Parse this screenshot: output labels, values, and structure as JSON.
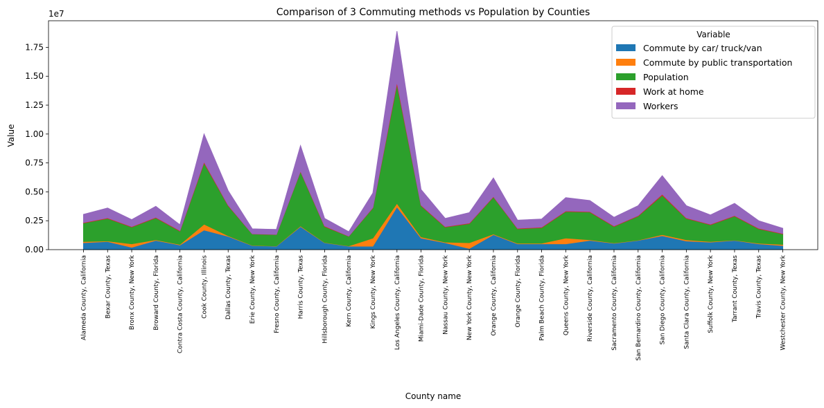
{
  "chart_data": {
    "type": "stacked_area",
    "title": "Comparison of 3 Commuting methods vs Population by Counties",
    "x_label": "County name",
    "y_label": "Value",
    "y_offset_label": "1e7",
    "legend_title": "Variable",
    "legend_position": "upper right",
    "grid": false,
    "categories": [
      "Alameda County, California",
      "Bexar County, Texas",
      "Bronx County, New York",
      "Broward County, Florida",
      "Contra Costa County, California",
      "Cook County, Illinois",
      "Dallas County, Texas",
      "Erie County, New York",
      "Fresno County, California",
      "Harris County, Texas",
      "Hillsborough County, Florida",
      "Kern County, California",
      "Kings County, New York",
      "Los Angeles County, California",
      "Miami-Dade County, Florida",
      "Nassau County, New York",
      "New York County, New York",
      "Orange County, California",
      "Orange County, Florida",
      "Palm Beach County, Florida",
      "Queens County, New York",
      "Riverside County, California",
      "Sacramento County, California",
      "San Bernardino County, California",
      "San Diego County, California",
      "Santa Clara County, California",
      "Suffolk County, New York",
      "Tarrant County, Texas",
      "Travis County, Texas",
      "Westchester County, New York"
    ],
    "series": [
      {
        "name": "Commute by car/ truck/van",
        "color": "#1f77b4",
        "values": [
          0.06,
          0.07,
          0.02,
          0.08,
          0.04,
          0.17,
          0.115,
          0.035,
          0.03,
          0.2,
          0.06,
          0.03,
          0.03,
          0.37,
          0.1,
          0.06,
          0.01,
          0.13,
          0.05,
          0.05,
          0.05,
          0.08,
          0.055,
          0.08,
          0.12,
          0.075,
          0.065,
          0.08,
          0.05,
          0.035
        ]
      },
      {
        "name": "Commute by public transportation",
        "color": "#ff7f0e",
        "values": [
          0.01,
          0.005,
          0.03,
          0.005,
          0.005,
          0.05,
          0.005,
          0.002,
          0.002,
          0.005,
          0.002,
          0.002,
          0.07,
          0.03,
          0.01,
          0.005,
          0.05,
          0.005,
          0.005,
          0.005,
          0.05,
          0.005,
          0.003,
          0.002,
          0.01,
          0.01,
          0.005,
          0.002,
          0.005,
          0.01
        ]
      },
      {
        "name": "Population",
        "color": "#2ca02c",
        "values": [
          0.16,
          0.195,
          0.145,
          0.19,
          0.115,
          0.53,
          0.26,
          0.098,
          0.098,
          0.47,
          0.138,
          0.083,
          0.26,
          1.03,
          0.27,
          0.13,
          0.165,
          0.32,
          0.125,
          0.135,
          0.23,
          0.24,
          0.142,
          0.208,
          0.34,
          0.185,
          0.145,
          0.208,
          0.125,
          0.09
        ]
      },
      {
        "name": "Work at home",
        "color": "#d62728",
        "values": [
          0.005,
          0.005,
          0.005,
          0.005,
          0.005,
          0.01,
          0.005,
          0.002,
          0.002,
          0.005,
          0.005,
          0.002,
          0.005,
          0.02,
          0.005,
          0.005,
          0.005,
          0.005,
          0.005,
          0.005,
          0.005,
          0.005,
          0.005,
          0.005,
          0.01,
          0.005,
          0.005,
          0.005,
          0.005,
          0.005
        ]
      },
      {
        "name": "Workers",
        "color": "#9467bd",
        "values": [
          0.07,
          0.085,
          0.06,
          0.095,
          0.05,
          0.24,
          0.125,
          0.043,
          0.043,
          0.22,
          0.065,
          0.038,
          0.125,
          0.44,
          0.135,
          0.07,
          0.09,
          0.16,
          0.07,
          0.07,
          0.115,
          0.095,
          0.075,
          0.085,
          0.16,
          0.105,
          0.08,
          0.105,
          0.065,
          0.045
        ]
      }
    ],
    "ylim": [
      0,
      1.98
    ],
    "yticks": [
      {
        "value": 0,
        "label": "0.00"
      },
      0.25,
      {
        "value": 0.5,
        "label": "0.50"
      },
      0.75,
      {
        "value": 1,
        "label": "1.00"
      },
      1.25,
      {
        "value": 1.5,
        "label": "1.50"
      },
      1.75
    ]
  }
}
